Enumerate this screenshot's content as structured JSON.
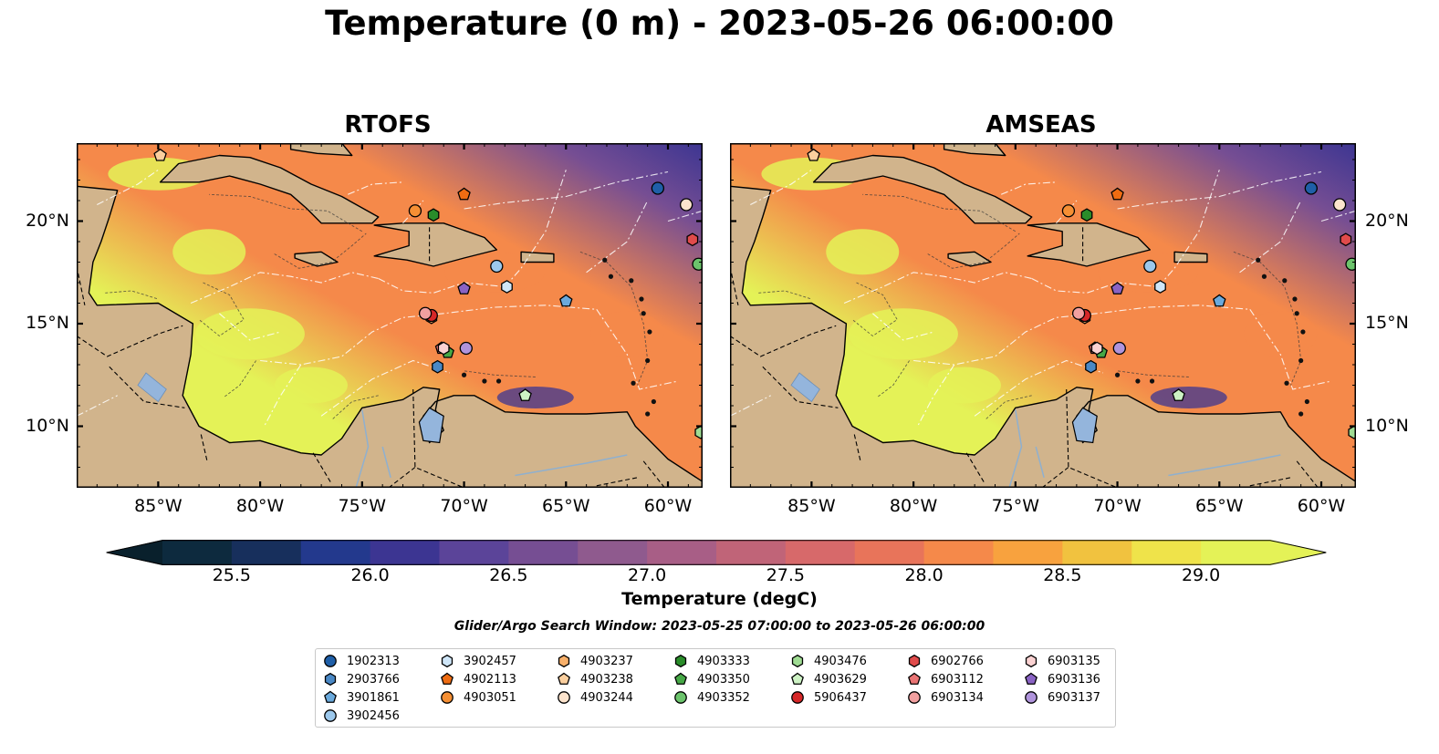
{
  "title": "Temperature (0 m) - 2023-05-26 06:00:00",
  "panels": [
    {
      "id": "rtofs",
      "title": "RTOFS",
      "lat_labels_side": "left"
    },
    {
      "id": "amseas",
      "title": "AMSEAS",
      "lat_labels_side": "right"
    }
  ],
  "lon_ticks": [
    "85°W",
    "80°W",
    "75°W",
    "70°W",
    "65°W",
    "60°W"
  ],
  "lat_ticks": [
    "20°N",
    "15°N",
    "10°N"
  ],
  "extent": {
    "lon_min": -89.0,
    "lon_max": -58.3,
    "lat_min": 7.0,
    "lat_max": 23.8
  },
  "colorbar": {
    "label": "Temperature (degC)",
    "ticks": [
      "25.5",
      "26.0",
      "26.5",
      "27.0",
      "27.5",
      "28.0",
      "28.5",
      "29.0"
    ],
    "range": [
      25.25,
      29.25
    ],
    "colors": [
      "#0d2a3e",
      "#172f5c",
      "#23398d",
      "#3c3592",
      "#5b4499",
      "#764e93",
      "#8f5a8e",
      "#a85e86",
      "#c06478",
      "#d7696a",
      "#e8745a",
      "#f5894a",
      "#f8a23e",
      "#f1c23f",
      "#efe34a",
      "#e4f257"
    ],
    "extend_min_color": "#09202c",
    "extend_max_color": "#e4f257"
  },
  "search_window": "Glider/Argo Search Window: 2023-05-25 07:00:00 to 2023-05-26 06:00:00",
  "colors": {
    "land": "#d1b48c",
    "missing_ocean": "#94b5dc",
    "ocean_warm": "#e4f257",
    "ocean_mid": "#f5894a",
    "ocean_cool": "#764e93",
    "ocean_cold": "#3c3592"
  },
  "floats": [
    {
      "id": "1902313",
      "marker": "circle",
      "color": "#1f5fa8",
      "lon": -60.5,
      "lat": 21.6
    },
    {
      "id": "2903766",
      "marker": "hexagon",
      "color": "#4a88c5",
      "lon": -71.3,
      "lat": 12.9
    },
    {
      "id": "3901861",
      "marker": "pentagon",
      "color": "#6aa9dc",
      "lon": -65.0,
      "lat": 16.1
    },
    {
      "id": "3902456",
      "marker": "circle",
      "color": "#9cc8ec",
      "lon": -68.4,
      "lat": 17.8
    },
    {
      "id": "3902457",
      "marker": "hexagon",
      "color": "#cfe6f8",
      "lon": -67.9,
      "lat": 16.8
    },
    {
      "id": "4902113",
      "marker": "pentagon",
      "color": "#ef6c12",
      "lon": -70.0,
      "lat": 21.3
    },
    {
      "id": "4903051",
      "marker": "circle",
      "color": "#f58f34",
      "lon": -72.4,
      "lat": 20.5
    },
    {
      "id": "4903237",
      "marker": "hexagon",
      "color": "#f8b06a",
      "lon": -71.6,
      "lat": 15.3
    },
    {
      "id": "4903238",
      "marker": "pentagon",
      "color": "#fbcf9e",
      "lon": -84.9,
      "lat": 23.2
    },
    {
      "id": "4903244",
      "marker": "circle",
      "color": "#fde4cd",
      "lon": -59.1,
      "lat": 20.8
    },
    {
      "id": "4903333",
      "marker": "hexagon",
      "color": "#2a8c2a",
      "lon": -71.5,
      "lat": 20.3
    },
    {
      "id": "4903350",
      "marker": "pentagon",
      "color": "#46a846",
      "lon": -70.8,
      "lat": 13.6
    },
    {
      "id": "4903352",
      "marker": "circle",
      "color": "#6cc46c",
      "lon": -58.5,
      "lat": 17.9
    },
    {
      "id": "4903476",
      "marker": "hexagon",
      "color": "#9fdc93",
      "lon": -58.4,
      "lat": 9.7
    },
    {
      "id": "4903629",
      "marker": "pentagon",
      "color": "#cdf2c4",
      "lon": -67.0,
      "lat": 11.5
    },
    {
      "id": "5906437",
      "marker": "circle",
      "color": "#d62728",
      "lon": -71.6,
      "lat": 15.4
    },
    {
      "id": "6902766",
      "marker": "hexagon",
      "color": "#e04b4b",
      "lon": -58.8,
      "lat": 19.1
    },
    {
      "id": "6903112",
      "marker": "pentagon",
      "color": "#ea7474",
      "lon": -71.1,
      "lat": 13.8
    },
    {
      "id": "6903134",
      "marker": "circle",
      "color": "#f2a0a0",
      "lon": -71.9,
      "lat": 15.5
    },
    {
      "id": "6903135",
      "marker": "hexagon",
      "color": "#fbd2d2",
      "lon": -71.0,
      "lat": 13.8
    },
    {
      "id": "6903136",
      "marker": "pentagon",
      "color": "#8a63c4",
      "lon": -70.0,
      "lat": 16.7
    },
    {
      "id": "6903137",
      "marker": "circle",
      "color": "#b094dc",
      "lon": -69.9,
      "lat": 13.8
    }
  ]
}
